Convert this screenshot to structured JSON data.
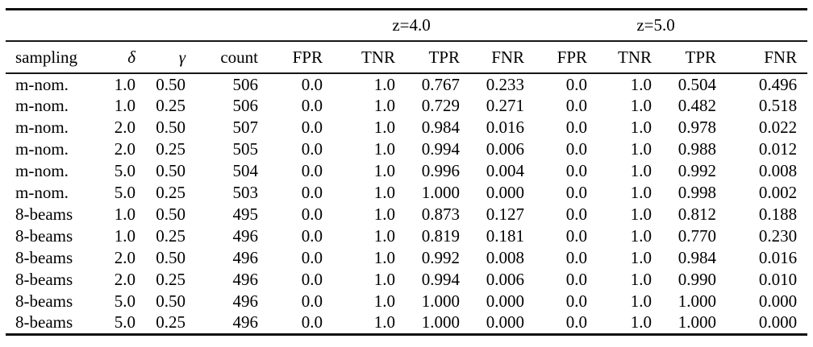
{
  "table": {
    "group_headers": [
      {
        "label": "z=4.0"
      },
      {
        "label": "z=5.0"
      }
    ],
    "columns": [
      "sampling",
      "δ",
      "γ",
      "count",
      "FPR",
      "TNR",
      "TPR",
      "FNR",
      "FPR",
      "TNR",
      "TPR",
      "FNR"
    ],
    "rows": [
      [
        "m-nom.",
        "1.0",
        "0.50",
        "506",
        "0.0",
        "1.0",
        "0.767",
        "0.233",
        "0.0",
        "1.0",
        "0.504",
        "0.496"
      ],
      [
        "m-nom.",
        "1.0",
        "0.25",
        "506",
        "0.0",
        "1.0",
        "0.729",
        "0.271",
        "0.0",
        "1.0",
        "0.482",
        "0.518"
      ],
      [
        "m-nom.",
        "2.0",
        "0.50",
        "507",
        "0.0",
        "1.0",
        "0.984",
        "0.016",
        "0.0",
        "1.0",
        "0.978",
        "0.022"
      ],
      [
        "m-nom.",
        "2.0",
        "0.25",
        "505",
        "0.0",
        "1.0",
        "0.994",
        "0.006",
        "0.0",
        "1.0",
        "0.988",
        "0.012"
      ],
      [
        "m-nom.",
        "5.0",
        "0.50",
        "504",
        "0.0",
        "1.0",
        "0.996",
        "0.004",
        "0.0",
        "1.0",
        "0.992",
        "0.008"
      ],
      [
        "m-nom.",
        "5.0",
        "0.25",
        "503",
        "0.0",
        "1.0",
        "1.000",
        "0.000",
        "0.0",
        "1.0",
        "0.998",
        "0.002"
      ],
      [
        "8-beams",
        "1.0",
        "0.50",
        "495",
        "0.0",
        "1.0",
        "0.873",
        "0.127",
        "0.0",
        "1.0",
        "0.812",
        "0.188"
      ],
      [
        "8-beams",
        "1.0",
        "0.25",
        "496",
        "0.0",
        "1.0",
        "0.819",
        "0.181",
        "0.0",
        "1.0",
        "0.770",
        "0.230"
      ],
      [
        "8-beams",
        "2.0",
        "0.50",
        "496",
        "0.0",
        "1.0",
        "0.992",
        "0.008",
        "0.0",
        "1.0",
        "0.984",
        "0.016"
      ],
      [
        "8-beams",
        "2.0",
        "0.25",
        "496",
        "0.0",
        "1.0",
        "0.994",
        "0.006",
        "0.0",
        "1.0",
        "0.990",
        "0.010"
      ],
      [
        "8-beams",
        "5.0",
        "0.50",
        "496",
        "0.0",
        "1.0",
        "1.000",
        "0.000",
        "0.0",
        "1.0",
        "1.000",
        "0.000"
      ],
      [
        "8-beams",
        "5.0",
        "0.25",
        "496",
        "0.0",
        "1.0",
        "1.000",
        "0.000",
        "0.0",
        "1.0",
        "1.000",
        "0.000"
      ]
    ]
  }
}
